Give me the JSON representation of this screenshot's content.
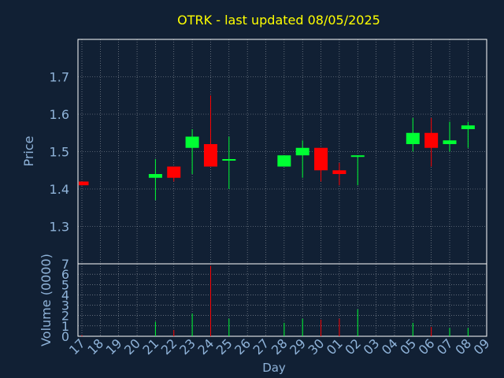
{
  "colors": {
    "background": "#112034",
    "title": "#ffff00",
    "axis_text": "#8fb3d9",
    "frame": "#ffffff",
    "grid": "#ffffff",
    "up": "#00ff33",
    "down": "#ff0000"
  },
  "chart_data": [
    {
      "type": "candlestick",
      "title": "OTRK - last updated 08/05/2025",
      "ylabel": "Price",
      "ylim": [
        1.2,
        1.8
      ],
      "yticks": [
        "1.3",
        "1.4",
        "1.5",
        "1.6",
        "1.7"
      ],
      "ytick_values": [
        1.3,
        1.4,
        1.5,
        1.6,
        1.7
      ],
      "grid": true,
      "categories": [
        "17",
        "18",
        "19",
        "20",
        "21",
        "22",
        "23",
        "24",
        "25",
        "26",
        "27",
        "28",
        "29",
        "30",
        "01",
        "02",
        "03",
        "04",
        "05",
        "06",
        "07",
        "08",
        "09"
      ],
      "candles": [
        {
          "day": "17",
          "open": 1.42,
          "high": 1.42,
          "low": 1.41,
          "close": 1.41
        },
        {
          "day": "21",
          "open": 1.43,
          "high": 1.48,
          "low": 1.37,
          "close": 1.44
        },
        {
          "day": "22",
          "open": 1.46,
          "high": 1.46,
          "low": 1.42,
          "close": 1.43
        },
        {
          "day": "23",
          "open": 1.51,
          "high": 1.56,
          "low": 1.44,
          "close": 1.54
        },
        {
          "day": "24",
          "open": 1.52,
          "high": 1.65,
          "low": 1.46,
          "close": 1.46
        },
        {
          "day": "25",
          "open": 1.48,
          "high": 1.54,
          "low": 1.4,
          "close": 1.48
        },
        {
          "day": "28",
          "open": 1.46,
          "high": 1.49,
          "low": 1.46,
          "close": 1.49
        },
        {
          "day": "29",
          "open": 1.49,
          "high": 1.53,
          "low": 1.43,
          "close": 1.51
        },
        {
          "day": "30",
          "open": 1.51,
          "high": 1.51,
          "low": 1.42,
          "close": 1.45
        },
        {
          "day": "01",
          "open": 1.45,
          "high": 1.47,
          "low": 1.41,
          "close": 1.44
        },
        {
          "day": "02",
          "open": 1.49,
          "high": 1.49,
          "low": 1.41,
          "close": 1.49
        },
        {
          "day": "05",
          "open": 1.52,
          "high": 1.59,
          "low": 1.5,
          "close": 1.55
        },
        {
          "day": "06",
          "open": 1.55,
          "high": 1.59,
          "low": 1.46,
          "close": 1.51
        },
        {
          "day": "07",
          "open": 1.52,
          "high": 1.58,
          "low": 1.5,
          "close": 1.53
        },
        {
          "day": "08",
          "open": 1.56,
          "high": 1.58,
          "low": 1.51,
          "close": 1.57
        }
      ]
    },
    {
      "type": "bar",
      "ylabel": "Volume (0000)",
      "xlabel": "Day",
      "ylim": [
        0,
        7
      ],
      "yticks": [
        "0",
        "1",
        "2",
        "3",
        "4",
        "5",
        "6",
        "7"
      ],
      "ytick_values": [
        0,
        1,
        2,
        3,
        4,
        5,
        6,
        7
      ],
      "grid": true,
      "categories": [
        "17",
        "18",
        "19",
        "20",
        "21",
        "22",
        "23",
        "24",
        "25",
        "26",
        "27",
        "28",
        "29",
        "30",
        "01",
        "02",
        "03",
        "04",
        "05",
        "06",
        "07",
        "08",
        "09"
      ],
      "volumes": [
        {
          "day": "17",
          "value": 0.1,
          "direction": "down"
        },
        {
          "day": "21",
          "value": 1.4,
          "direction": "up"
        },
        {
          "day": "22",
          "value": 0.6,
          "direction": "down"
        },
        {
          "day": "23",
          "value": 2.2,
          "direction": "up"
        },
        {
          "day": "24",
          "value": 6.8,
          "direction": "down"
        },
        {
          "day": "25",
          "value": 1.7,
          "direction": "up"
        },
        {
          "day": "28",
          "value": 1.3,
          "direction": "up"
        },
        {
          "day": "29",
          "value": 1.7,
          "direction": "up"
        },
        {
          "day": "30",
          "value": 1.6,
          "direction": "down"
        },
        {
          "day": "01",
          "value": 1.7,
          "direction": "down"
        },
        {
          "day": "02",
          "value": 2.6,
          "direction": "up"
        },
        {
          "day": "05",
          "value": 1.3,
          "direction": "up"
        },
        {
          "day": "06",
          "value": 0.9,
          "direction": "down"
        },
        {
          "day": "07",
          "value": 0.8,
          "direction": "up"
        },
        {
          "day": "08",
          "value": 0.8,
          "direction": "up"
        }
      ]
    }
  ]
}
